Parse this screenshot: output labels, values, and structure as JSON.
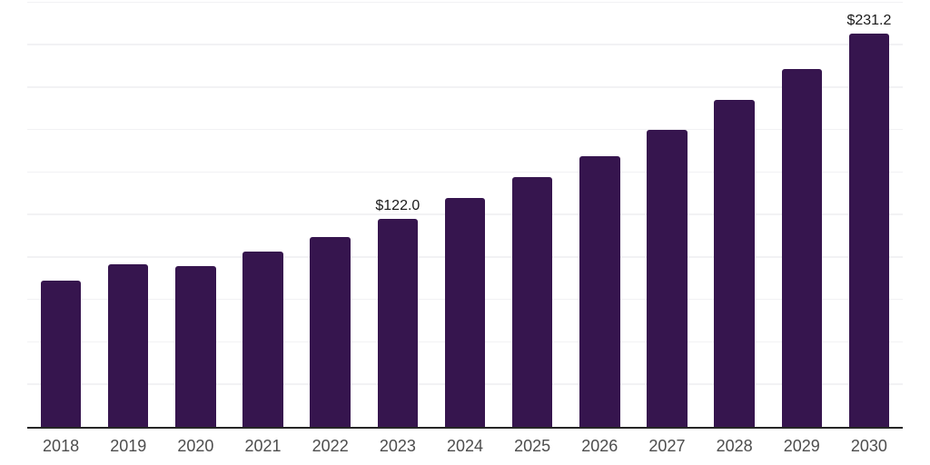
{
  "chart_data": {
    "type": "bar",
    "title": "",
    "xlabel": "",
    "ylabel": "",
    "categories": [
      "2018",
      "2019",
      "2020",
      "2021",
      "2022",
      "2023",
      "2024",
      "2025",
      "2026",
      "2027",
      "2028",
      "2029",
      "2030"
    ],
    "values": [
      85.8,
      95.3,
      94.4,
      102.7,
      111.3,
      122.0,
      134.3,
      146.8,
      158.9,
      174.7,
      192.3,
      210.5,
      231.2
    ],
    "data_labels": {
      "2023": "$122.0",
      "2030": "$231.2"
    },
    "ylim": [
      0,
      250
    ],
    "ytick_step": 25,
    "grid": true,
    "legend": false,
    "y_axis_labels_visible": false,
    "colors": {
      "bar": "#36154E",
      "gridline": "#f2f2f4",
      "axis_line": "#262626",
      "tick_label": "#4d4d4d",
      "data_label": "#1a1a1a",
      "background": "#ffffff"
    }
  }
}
